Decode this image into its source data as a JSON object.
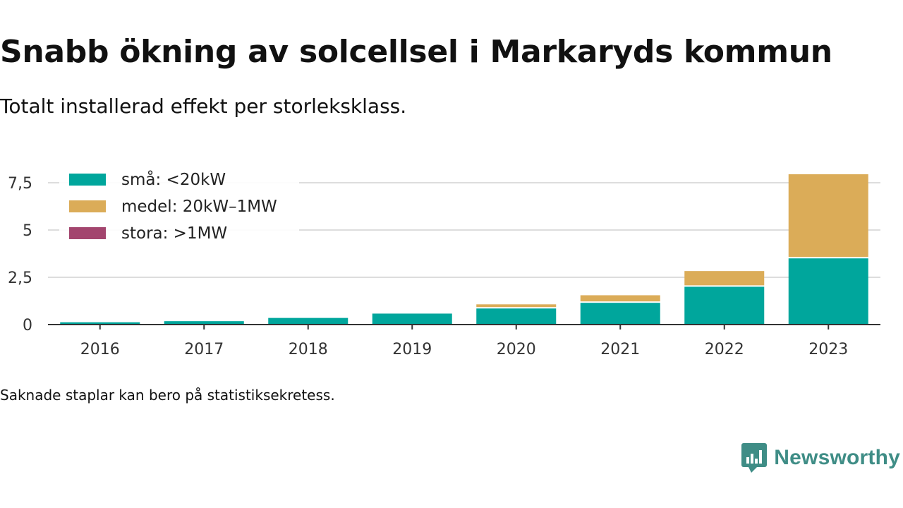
{
  "header": {
    "title": "Snabb ökning av solcellsel i Markaryds kommun",
    "subtitle": "Totalt installerad effekt per storleksklass."
  },
  "footer": {
    "note": "Saknade staplar kan bero på statistiksekretess.",
    "brand": "Newsworthy"
  },
  "chart_data": {
    "type": "bar",
    "stacked": true,
    "categories": [
      "2016",
      "2017",
      "2018",
      "2019",
      "2020",
      "2021",
      "2022",
      "2023"
    ],
    "series": [
      {
        "name": "små: <20kW",
        "color": "#00a69c",
        "values": [
          0.12,
          0.18,
          0.35,
          0.58,
          0.85,
          1.15,
          2.0,
          3.5
        ]
      },
      {
        "name": "medel: 20kW–1MW",
        "color": "#dbac58",
        "values": [
          0,
          0,
          0,
          0,
          0.22,
          0.4,
          0.83,
          4.45
        ]
      },
      {
        "name": "stora: >1MW",
        "color": "#a3456e",
        "values": [
          0,
          0,
          0,
          0,
          0,
          0,
          0,
          0
        ]
      }
    ],
    "y_ticks": [
      "0",
      "2,5",
      "5",
      "7,5"
    ],
    "y_tick_values": [
      0,
      2.5,
      5,
      7.5
    ],
    "ylim": [
      0,
      8.3
    ],
    "grid": true,
    "legend_position": "top-left"
  }
}
